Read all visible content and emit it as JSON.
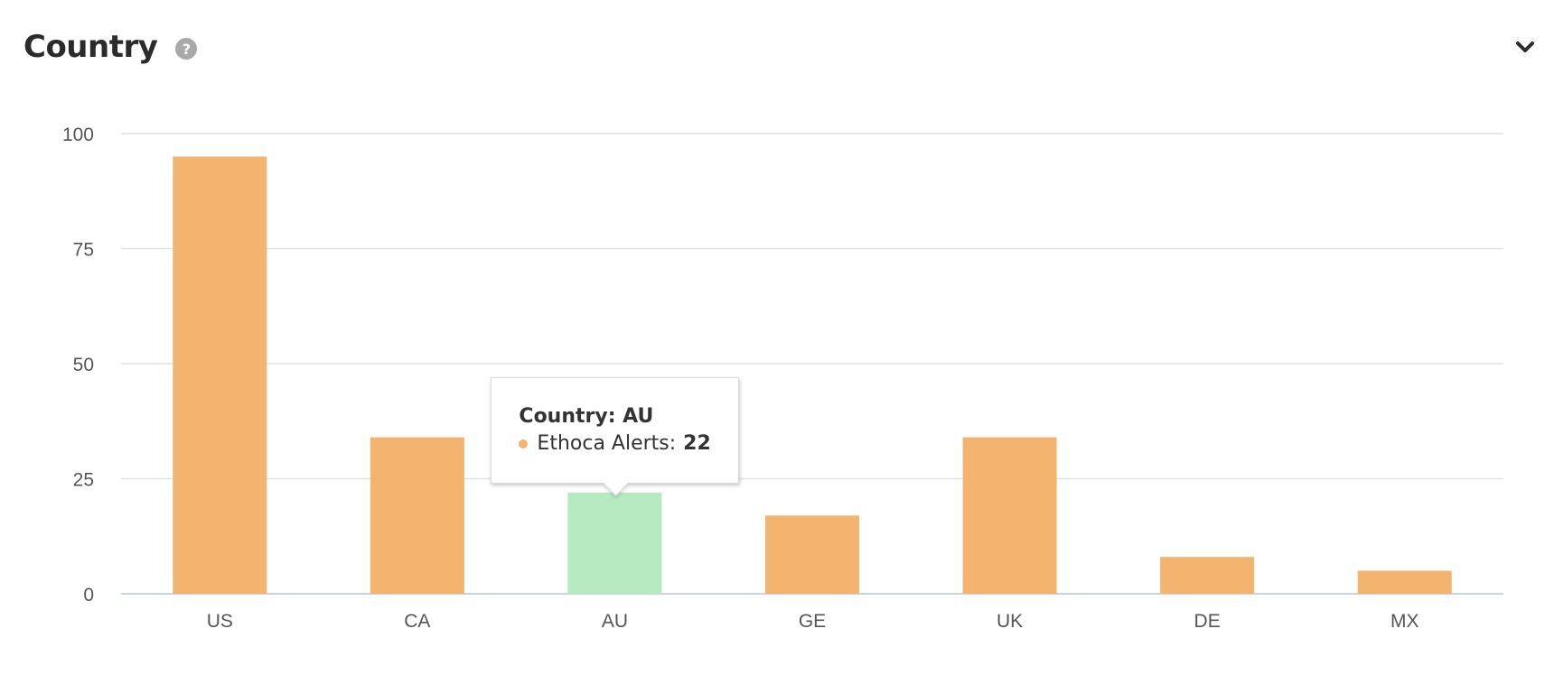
{
  "widget": {
    "title": "Country",
    "help_icon": "question-circle-icon",
    "collapse_icon": "chevron-down-icon"
  },
  "chart_data": {
    "type": "bar",
    "categories": [
      "US",
      "CA",
      "AU",
      "GE",
      "UK",
      "DE",
      "MX"
    ],
    "series": [
      {
        "name": "Ethoca Alerts",
        "values": [
          95,
          34,
          22,
          17,
          34,
          8,
          5
        ],
        "color": "#f2b46e"
      }
    ],
    "highlight_color": "#b5e9c0",
    "highlighted_category": "AU",
    "ylim": [
      0,
      100
    ],
    "yticks": [
      0,
      25,
      50,
      75,
      100
    ],
    "grid": true,
    "grid_color": "#dde2e8",
    "axis_color": "#c8d4e3",
    "tooltip": {
      "category_label": "Country: AU",
      "series_label": "Ethoca Alerts:",
      "value": "22"
    }
  }
}
